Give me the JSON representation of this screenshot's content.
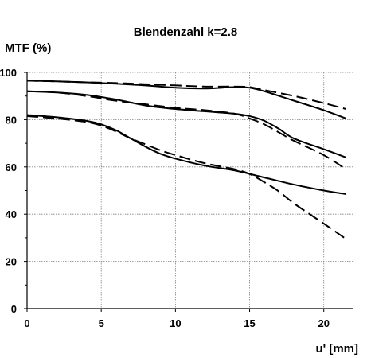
{
  "chart_data": {
    "type": "line",
    "title": "Blendenzahl k=2.8",
    "xlabel": "u' [mm]",
    "ylabel": "MTF (%)",
    "xlim": [
      0,
      22
    ],
    "ylim": [
      0,
      100
    ],
    "xticks": [
      0,
      5,
      10,
      15,
      20
    ],
    "yticks": [
      0,
      20,
      40,
      60,
      80,
      100
    ],
    "ytick_labels": [
      "0",
      "20",
      "40",
      "60",
      "80",
      "100"
    ],
    "grid": {
      "x": true,
      "y": true,
      "style": "dotted"
    },
    "colors": {
      "lines": "#000000",
      "grid": "#808080",
      "background": "#ffffff"
    },
    "series": [
      {
        "style": "solid",
        "x": [
          0,
          2,
          4,
          6,
          8,
          10,
          12,
          14,
          15,
          16,
          18,
          20,
          21.5
        ],
        "y": [
          96.5,
          96.2,
          95.8,
          95.2,
          94.5,
          93.5,
          93.2,
          93.8,
          93.5,
          92.0,
          88.0,
          84.0,
          80.5
        ]
      },
      {
        "style": "dashed",
        "x": [
          0,
          2,
          4,
          6,
          8,
          10,
          12,
          14,
          15,
          16,
          18,
          20,
          21.5
        ],
        "y": [
          96.5,
          96.2,
          95.8,
          95.5,
          95.0,
          94.5,
          94.0,
          94.0,
          93.8,
          92.5,
          90.0,
          87.0,
          84.5
        ]
      },
      {
        "style": "solid",
        "x": [
          0,
          2,
          4,
          6,
          8,
          10,
          12,
          14,
          15,
          16,
          17,
          18,
          20,
          21.5
        ],
        "y": [
          92.0,
          91.5,
          90.5,
          88.5,
          86.0,
          84.5,
          83.5,
          82.5,
          81.5,
          79.5,
          76.0,
          72.0,
          67.5,
          64.0
        ]
      },
      {
        "style": "dashed",
        "x": [
          0,
          2,
          4,
          6,
          8,
          10,
          12,
          14,
          15,
          16,
          17,
          18,
          20,
          21.5
        ],
        "y": [
          92.0,
          91.5,
          90.0,
          88.0,
          86.5,
          85.0,
          84.0,
          82.5,
          80.5,
          78.0,
          74.5,
          71.0,
          65.0,
          59.0
        ]
      },
      {
        "style": "solid",
        "x": [
          0,
          2,
          4,
          5,
          6,
          7,
          8,
          9,
          10,
          12,
          14,
          16,
          18,
          20,
          21.5
        ],
        "y": [
          82.0,
          81.0,
          79.5,
          78.0,
          75.5,
          72.0,
          68.5,
          65.5,
          63.5,
          60.5,
          58.5,
          55.5,
          52.5,
          50.0,
          48.5
        ]
      },
      {
        "style": "dashed",
        "x": [
          0,
          2,
          4,
          5,
          6,
          7,
          8,
          9,
          10,
          12,
          14,
          15,
          16,
          17,
          18,
          20,
          21.5
        ],
        "y": [
          81.5,
          80.5,
          79.0,
          77.5,
          75.0,
          72.0,
          69.5,
          67.0,
          65.0,
          61.5,
          59.0,
          57.0,
          53.5,
          49.5,
          44.5,
          36.0,
          29.5
        ]
      }
    ]
  }
}
